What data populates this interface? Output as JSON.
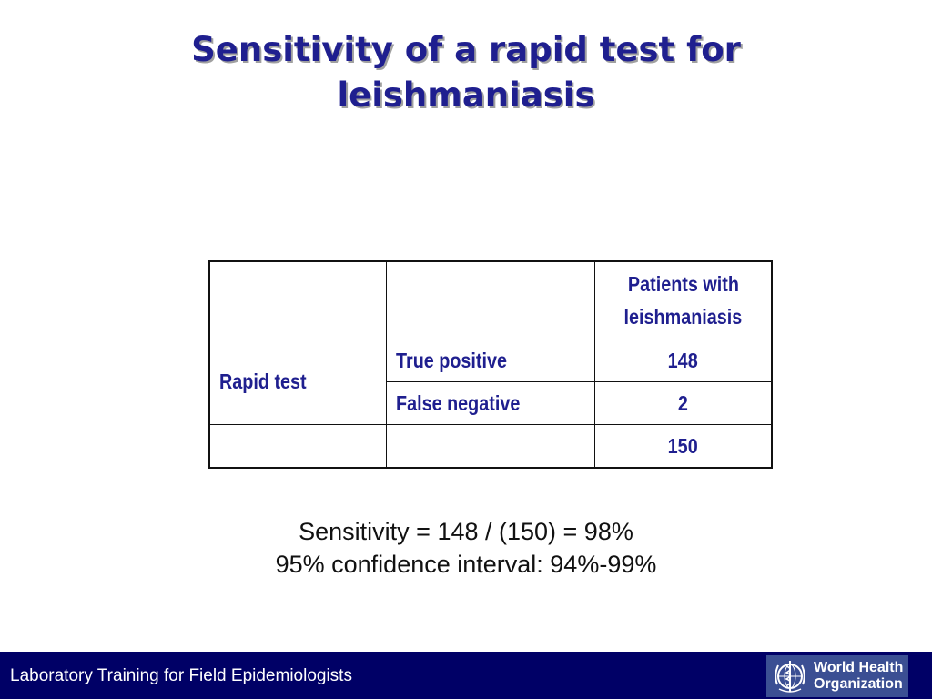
{
  "slide": {
    "title_line1": "Sensitivity of a rapid test for",
    "title_line2": "leishmaniasis"
  },
  "table": {
    "header_line1": "Patients with",
    "header_line2": "leishmaniasis",
    "row_group_label": "Rapid test",
    "rows": [
      {
        "label": "True positive",
        "value": "148"
      },
      {
        "label": "False negative",
        "value": "2"
      }
    ],
    "total": "150"
  },
  "summary": {
    "line1": "Sensitivity = 148 / (150) = 98%",
    "line2": "95% confidence interval: 94%-99%"
  },
  "footer": {
    "text": "Laboratory Training for Field Epidemiologists",
    "logo_line1": "World Health",
    "logo_line2": "Organization",
    "logo_icon": "who-emblem-icon",
    "bar_color": "#000066",
    "title_color": "#1f1f8f"
  }
}
